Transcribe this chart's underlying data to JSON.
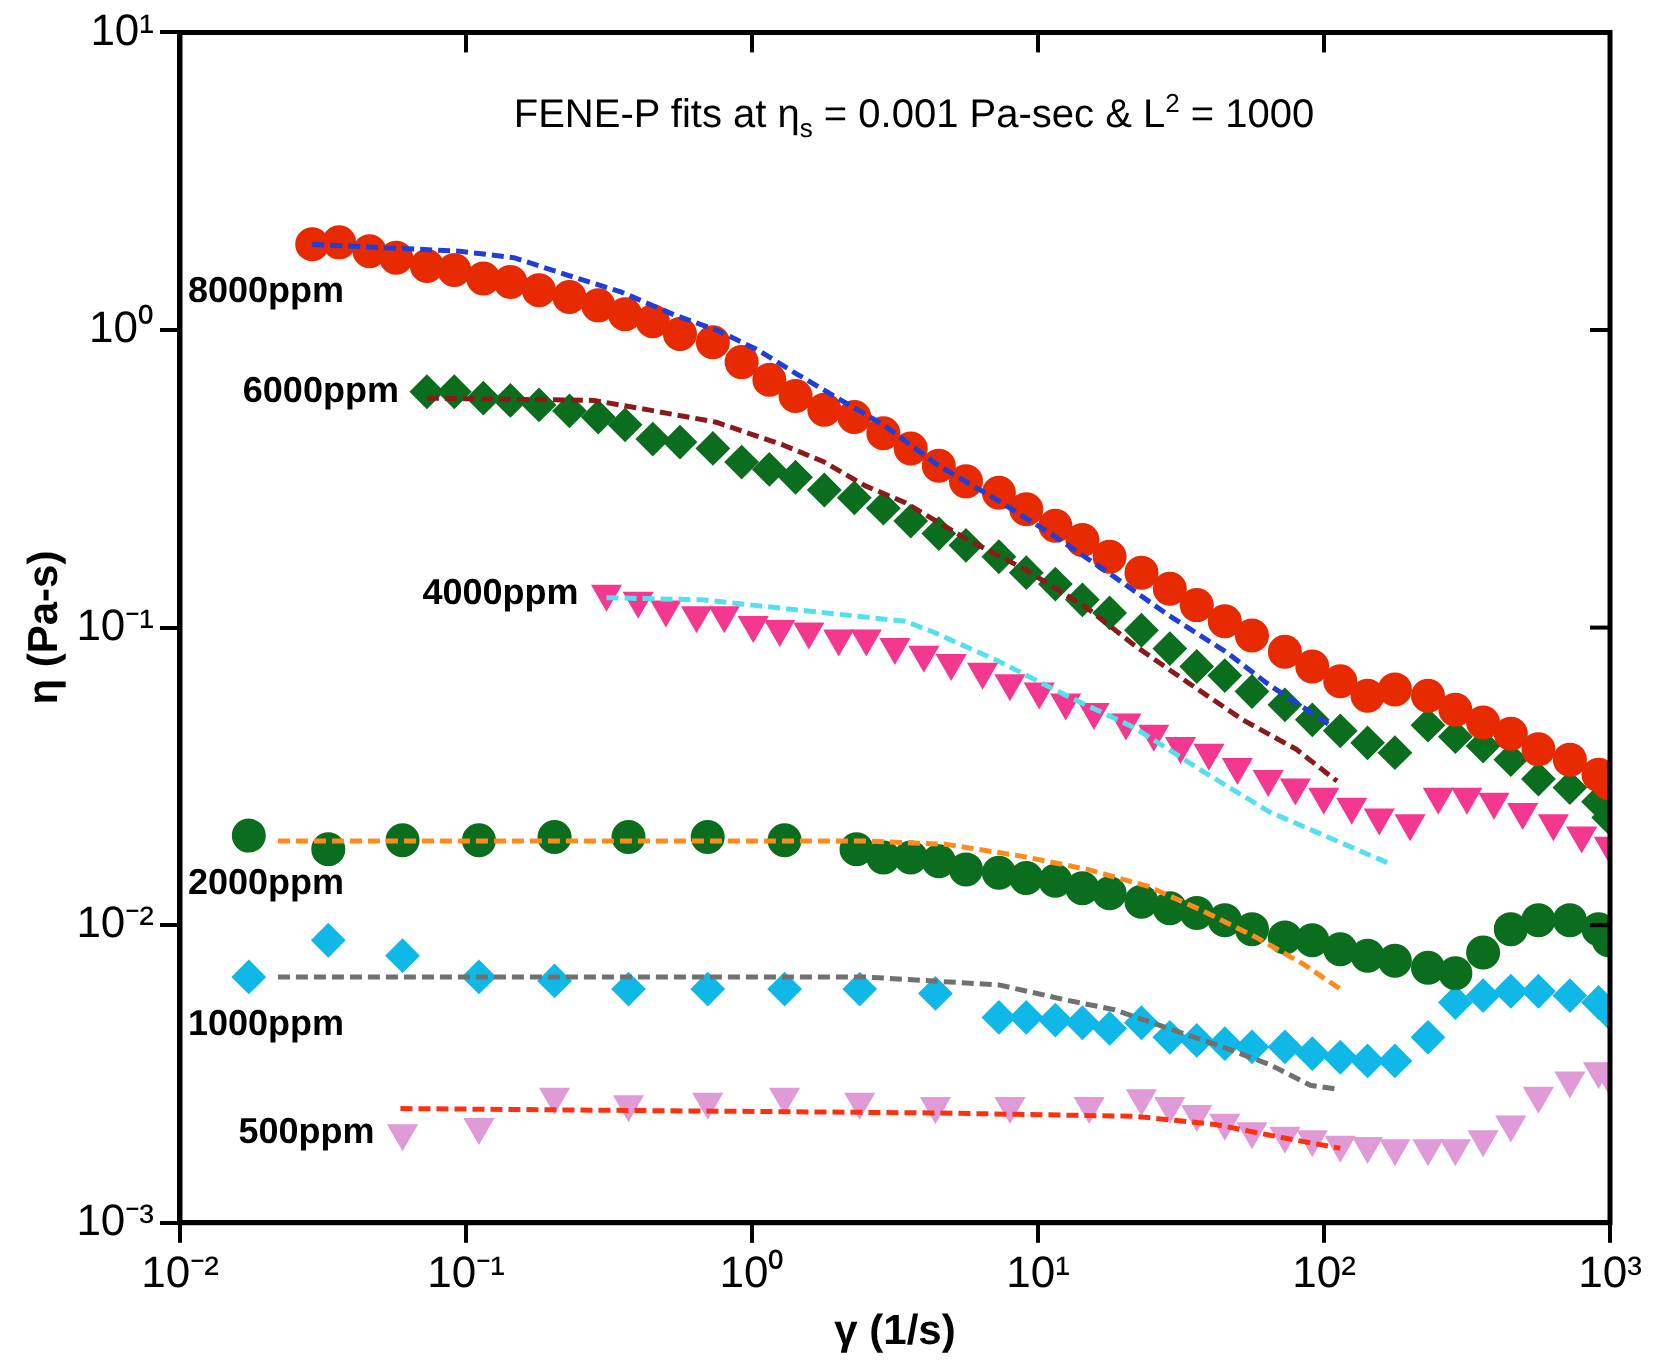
{
  "chart_data": {
    "type": "scatter",
    "title": "FENE-P fits at η$_{s}$ = 0.001 Pa-sec & L$^{2}$ = 1000",
    "xlabel": "γ (1/s)",
    "ylabel": "η (Pa-s)",
    "log": "xy",
    "grid": false,
    "legend": false,
    "xlim": [
      0.01,
      1000
    ],
    "xticks": [
      {
        "value": 0.01,
        "label": "10⁻²"
      },
      {
        "value": 0.1,
        "label": "10⁻¹"
      },
      {
        "value": 1,
        "label": "10⁰"
      },
      {
        "value": 10,
        "label": "10¹"
      },
      {
        "value": 100,
        "label": "10²"
      },
      {
        "value": 1000,
        "label": "10³"
      }
    ],
    "ylim": [
      0.001,
      10
    ],
    "yticks": [
      {
        "value": 0.001,
        "label": "10⁻³"
      },
      {
        "value": 0.01,
        "label": "10⁻²"
      },
      {
        "value": 0.1,
        "label": "10⁻¹"
      },
      {
        "value": 1,
        "label": "10⁰"
      },
      {
        "value": 10,
        "label": "10¹"
      }
    ],
    "series": [
      {
        "name": "8000ppm",
        "marker": "circle",
        "color": "#e82a00",
        "x": [
          0.029,
          0.036,
          0.046,
          0.057,
          0.073,
          0.091,
          0.115,
          0.143,
          0.18,
          0.23,
          0.29,
          0.36,
          0.45,
          0.56,
          0.73,
          0.92,
          1.15,
          1.42,
          1.79,
          2.28,
          2.88,
          3.59,
          4.5,
          5.6,
          7.3,
          9.1,
          11.5,
          14.3,
          17.8,
          23,
          28.9,
          35.9,
          45,
          56,
          73,
          91,
          114,
          142,
          177,
          231,
          288,
          360,
          450,
          562,
          724,
          912,
          990
        ],
        "values": [
          1.94,
          1.97,
          1.84,
          1.75,
          1.64,
          1.59,
          1.49,
          1.45,
          1.36,
          1.29,
          1.21,
          1.13,
          1.07,
          0.97,
          0.91,
          0.78,
          0.68,
          0.6,
          0.54,
          0.51,
          0.45,
          0.4,
          0.35,
          0.31,
          0.284,
          0.25,
          0.22,
          0.197,
          0.173,
          0.153,
          0.135,
          0.119,
          0.105,
          0.094,
          0.083,
          0.074,
          0.066,
          0.059,
          0.062,
          0.059,
          0.053,
          0.048,
          0.044,
          0.039,
          0.036,
          0.032,
          0.03
        ]
      },
      {
        "name": "6000ppm",
        "marker": "diamond",
        "color": "#0a6e1e",
        "x": [
          0.073,
          0.091,
          0.115,
          0.143,
          0.18,
          0.23,
          0.29,
          0.36,
          0.45,
          0.56,
          0.73,
          0.92,
          1.15,
          1.42,
          1.79,
          2.28,
          2.88,
          3.59,
          4.5,
          5.6,
          7.3,
          9.1,
          11.5,
          14.3,
          17.8,
          23,
          28.9,
          35.9,
          45,
          56,
          73,
          91,
          114,
          142,
          177,
          231,
          288,
          360,
          450,
          562,
          724,
          912,
          990
        ],
        "values": [
          0.62,
          0.62,
          0.59,
          0.58,
          0.56,
          0.535,
          0.51,
          0.48,
          0.43,
          0.42,
          0.4,
          0.36,
          0.34,
          0.32,
          0.29,
          0.273,
          0.252,
          0.228,
          0.207,
          0.189,
          0.173,
          0.153,
          0.14,
          0.124,
          0.112,
          0.098,
          0.085,
          0.074,
          0.069,
          0.061,
          0.055,
          0.049,
          0.045,
          0.041,
          0.038,
          0.047,
          0.043,
          0.04,
          0.036,
          0.031,
          0.029,
          0.026,
          0.023
        ]
      },
      {
        "name": "4000ppm",
        "marker": "triangle",
        "color": "#f5388f",
        "x": [
          0.31,
          0.4,
          0.5,
          0.64,
          0.8,
          1.01,
          1.25,
          1.58,
          2.01,
          2.51,
          3.16,
          3.99,
          4.97,
          6.4,
          7.98,
          10.1,
          12.5,
          15.7,
          20.3,
          25.4,
          31.5,
          39.6,
          49.8,
          63.8,
          79.4,
          99.8,
          125,
          156,
          200,
          251,
          316,
          393,
          495,
          634,
          796,
          995
        ],
        "values": [
          0.13,
          0.123,
          0.115,
          0.11,
          0.11,
          0.102,
          0.099,
          0.097,
          0.092,
          0.092,
          0.086,
          0.081,
          0.076,
          0.071,
          0.065,
          0.061,
          0.056,
          0.052,
          0.048,
          0.044,
          0.04,
          0.038,
          0.034,
          0.031,
          0.029,
          0.027,
          0.025,
          0.023,
          0.022,
          0.027,
          0.027,
          0.026,
          0.024,
          0.022,
          0.02,
          0.0185
        ]
      },
      {
        "name": "2000ppm",
        "marker": "circle",
        "color": "#0a6e1e",
        "x": [
          0.0174,
          0.033,
          0.06,
          0.111,
          0.204,
          0.37,
          0.7,
          1.3,
          2.32,
          2.88,
          3.59,
          4.5,
          5.6,
          7.3,
          9.1,
          11.5,
          14.3,
          17.8,
          23,
          28.9,
          35.9,
          45,
          56,
          73,
          91,
          114,
          142,
          177,
          231,
          288,
          360,
          450,
          562,
          724,
          912,
          990
        ],
        "values": [
          0.02,
          0.018,
          0.0193,
          0.0193,
          0.0198,
          0.0198,
          0.0198,
          0.0193,
          0.018,
          0.0169,
          0.0169,
          0.0164,
          0.0154,
          0.015,
          0.0144,
          0.0141,
          0.0133,
          0.0128,
          0.012,
          0.0114,
          0.011,
          0.0104,
          0.0097,
          0.0091,
          0.0089,
          0.0083,
          0.0079,
          0.0076,
          0.0072,
          0.0069,
          0.0081,
          0.0097,
          0.0104,
          0.0104,
          0.0097,
          0.0089
        ]
      },
      {
        "name": "1000ppm",
        "marker": "diamond",
        "color": "#10b8e8",
        "x": [
          0.0174,
          0.033,
          0.06,
          0.111,
          0.204,
          0.37,
          0.7,
          1.3,
          2.38,
          4.38,
          7.3,
          9.1,
          11.5,
          14.3,
          17.8,
          23,
          28.9,
          35.9,
          45,
          56,
          73,
          91,
          114,
          142,
          177,
          231,
          288,
          360,
          450,
          562,
          724,
          912,
          990
        ],
        "values": [
          0.0067,
          0.0089,
          0.0079,
          0.0067,
          0.0065,
          0.0061,
          0.0061,
          0.0061,
          0.0061,
          0.0059,
          0.0049,
          0.0049,
          0.0048,
          0.0047,
          0.0045,
          0.0047,
          0.0042,
          0.0041,
          0.004,
          0.0039,
          0.0039,
          0.0037,
          0.0036,
          0.0035,
          0.0035,
          0.0042,
          0.0055,
          0.0058,
          0.006,
          0.006,
          0.0058,
          0.0055,
          0.0051
        ]
      },
      {
        "name": "500ppm",
        "marker": "triangle",
        "color": "#e09ad8",
        "x": [
          0.06,
          0.111,
          0.204,
          0.37,
          0.7,
          1.3,
          2.38,
          4.38,
          7.98,
          15.1,
          23,
          28.9,
          35.9,
          45,
          56,
          73,
          91,
          114,
          142,
          177,
          231,
          288,
          360,
          450,
          562,
          724,
          912,
          990
        ],
        "values": [
          0.002,
          0.0021,
          0.00265,
          0.0025,
          0.00255,
          0.00265,
          0.00255,
          0.00247,
          0.00247,
          0.00247,
          0.00262,
          0.00247,
          0.00232,
          0.00217,
          0.00203,
          0.00196,
          0.00191,
          0.00183,
          0.00181,
          0.00178,
          0.00178,
          0.00178,
          0.00191,
          0.00214,
          0.00267,
          0.00301,
          0.00323,
          0.0031
        ]
      },
      {
        "type": "line",
        "marker": "none",
        "line_style": "dashed",
        "color": "#1f3fd8",
        "x": [
          0.029,
          0.095,
          0.147,
          0.226,
          0.35,
          0.54,
          0.75,
          1.04,
          1.44,
          1.88,
          2.88,
          4.5,
          7.3,
          11.5,
          18.5,
          28.6,
          45.3,
          64.6,
          105
        ],
        "values": [
          1.94,
          1.84,
          1.75,
          1.53,
          1.34,
          1.12,
          1.0,
          0.86,
          0.71,
          0.61,
          0.48,
          0.35,
          0.266,
          0.202,
          0.148,
          0.11,
          0.083,
          0.064,
          0.047
        ]
      },
      {
        "type": "line",
        "marker": "none",
        "line_style": "dashed",
        "color": "#8b1a1a",
        "x": [
          0.073,
          0.28,
          0.43,
          0.75,
          1.29,
          1.79,
          2.48,
          3.43,
          5.6,
          9.1,
          14.9,
          21.8,
          33.7,
          52,
          80,
          111
        ],
        "values": [
          0.59,
          0.58,
          0.54,
          0.49,
          0.41,
          0.36,
          0.3,
          0.263,
          0.199,
          0.156,
          0.116,
          0.087,
          0.065,
          0.049,
          0.039,
          0.0305
        ]
      },
      {
        "type": "line",
        "marker": "none",
        "line_style": "dashed",
        "color": "#55e0f0",
        "x": [
          0.31,
          0.67,
          1.29,
          3.43,
          4.26,
          7.3,
          12.6,
          21.8,
          37.5,
          64.6,
          172
        ],
        "values": [
          0.126,
          0.124,
          0.116,
          0.105,
          0.097,
          0.077,
          0.059,
          0.046,
          0.033,
          0.024,
          0.016
        ]
      },
      {
        "type": "line",
        "marker": "none",
        "line_style": "dashed",
        "color": "#ff8c1a",
        "x": [
          0.022,
          2.48,
          4.75,
          8.65,
          14.9,
          24.3,
          37.5,
          58,
          84.7,
          114
        ],
        "values": [
          0.0192,
          0.0192,
          0.0187,
          0.0171,
          0.0154,
          0.0135,
          0.0112,
          0.0091,
          0.0074,
          0.0061
        ]
      },
      {
        "type": "line",
        "marker": "none",
        "line_style": "dashed",
        "color": "#707070",
        "x": [
          0.022,
          2.48,
          7.3,
          12.6,
          18.5,
          28.6,
          44.2,
          64.6,
          89.5,
          114
        ],
        "values": [
          0.0067,
          0.0067,
          0.0063,
          0.0056,
          0.0052,
          0.0045,
          0.0039,
          0.0034,
          0.0029,
          0.0028
        ]
      },
      {
        "type": "line",
        "marker": "none",
        "line_style": "dashed",
        "color": "#ff3010",
        "x": [
          0.059,
          4.26,
          21.8,
          41.8,
          72,
          114
        ],
        "values": [
          0.00242,
          0.00234,
          0.00228,
          0.00214,
          0.00193,
          0.00178
        ]
      }
    ]
  }
}
